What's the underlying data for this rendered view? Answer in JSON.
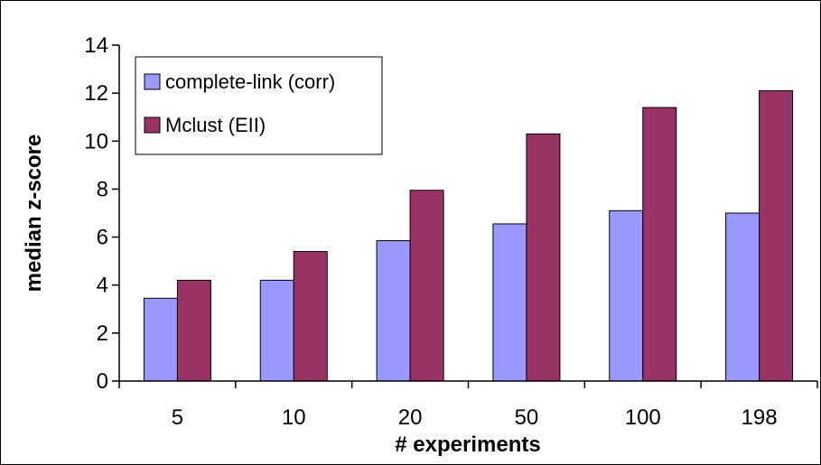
{
  "chart_data": {
    "type": "bar",
    "title": "",
    "xlabel": "# experiments",
    "ylabel": "median z-score",
    "categories": [
      "5",
      "10",
      "20",
      "50",
      "100",
      "198"
    ],
    "ylim": [
      0,
      14
    ],
    "yticks": [
      "0",
      "2",
      "4",
      "6",
      "8",
      "10",
      "12",
      "14"
    ],
    "grid": false,
    "legend_position": "top-left",
    "series": [
      {
        "name": "complete-link (corr)",
        "color": "#9999ff",
        "values": [
          3.45,
          4.2,
          5.85,
          6.55,
          7.1,
          7.0
        ]
      },
      {
        "name": "Mclust (EII)",
        "color": "#993366",
        "values": [
          4.2,
          5.4,
          7.95,
          10.3,
          11.4,
          12.1
        ]
      }
    ]
  }
}
